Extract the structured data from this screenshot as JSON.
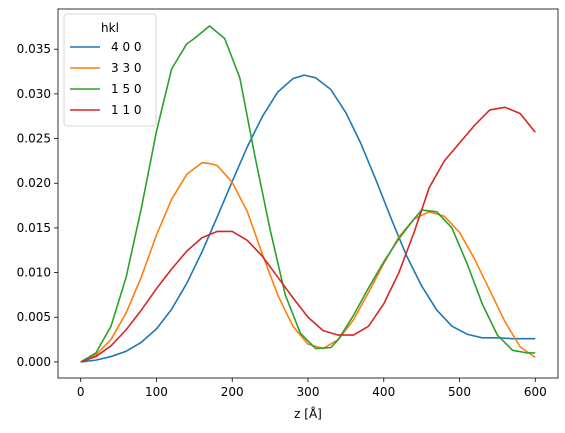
{
  "chart_data": {
    "type": "line",
    "xlabel": "z [Å]",
    "ylabel": "",
    "xlim": [
      -30,
      630
    ],
    "ylim": [
      -0.0018,
      0.0395
    ],
    "xticks": [
      0,
      100,
      200,
      300,
      400,
      500,
      600
    ],
    "yticks": [
      0.0,
      0.005,
      0.01,
      0.015,
      0.02,
      0.025,
      0.03,
      0.035
    ],
    "ytick_labels": [
      "0.000",
      "0.005",
      "0.010",
      "0.015",
      "0.020",
      "0.025",
      "0.030",
      "0.035"
    ],
    "xtick_labels": [
      "0",
      "100",
      "200",
      "300",
      "400",
      "500",
      "600"
    ],
    "legend": {
      "title": "hkl",
      "placement": "top-left"
    },
    "grid": false,
    "series": [
      {
        "name": "4 0 0",
        "color": "#1f77b4",
        "x": [
          0,
          20,
          40,
          60,
          80,
          100,
          120,
          140,
          160,
          180,
          200,
          220,
          240,
          260,
          280,
          295,
          310,
          330,
          350,
          370,
          390,
          410,
          430,
          450,
          470,
          490,
          510,
          530,
          550,
          570,
          600
        ],
        "y": [
          0.0,
          0.0002,
          0.0006,
          0.0012,
          0.0022,
          0.0037,
          0.0059,
          0.0088,
          0.0123,
          0.0162,
          0.0202,
          0.0241,
          0.0275,
          0.0302,
          0.0317,
          0.0321,
          0.0318,
          0.0305,
          0.0279,
          0.0244,
          0.0203,
          0.016,
          0.0119,
          0.0085,
          0.0058,
          0.004,
          0.0031,
          0.0027,
          0.0027,
          0.0026,
          0.0026
        ]
      },
      {
        "name": "3 3 0",
        "color": "#ff7f0e",
        "x": [
          0,
          20,
          40,
          60,
          80,
          100,
          120,
          140,
          160,
          170,
          180,
          200,
          220,
          240,
          260,
          280,
          300,
          320,
          340,
          360,
          380,
          400,
          420,
          440,
          460,
          480,
          500,
          520,
          540,
          560,
          580,
          600
        ],
        "y": [
          0.0,
          0.0008,
          0.0025,
          0.0055,
          0.0095,
          0.0142,
          0.0182,
          0.021,
          0.0223,
          0.0222,
          0.022,
          0.0201,
          0.0168,
          0.012,
          0.0075,
          0.004,
          0.002,
          0.0015,
          0.0025,
          0.0047,
          0.0078,
          0.011,
          0.014,
          0.016,
          0.0168,
          0.0163,
          0.0145,
          0.0115,
          0.008,
          0.0045,
          0.0017,
          0.0005
        ]
      },
      {
        "name": "1 5 0",
        "color": "#2ca02c",
        "x": [
          0,
          20,
          40,
          60,
          80,
          100,
          120,
          140,
          150,
          170,
          190,
          210,
          230,
          250,
          270,
          290,
          310,
          330,
          340,
          360,
          380,
          400,
          420,
          440,
          450,
          470,
          490,
          510,
          530,
          550,
          570,
          590,
          600
        ],
        "y": [
          0.0,
          0.001,
          0.004,
          0.0095,
          0.0172,
          0.0258,
          0.0328,
          0.0356,
          0.0362,
          0.0376,
          0.0362,
          0.0318,
          0.023,
          0.0148,
          0.0075,
          0.0032,
          0.0015,
          0.0016,
          0.0025,
          0.0052,
          0.0083,
          0.0112,
          0.0138,
          0.016,
          0.017,
          0.0168,
          0.015,
          0.011,
          0.0065,
          0.003,
          0.0013,
          0.001,
          0.001
        ]
      },
      {
        "name": "1 1 0",
        "color": "#d62728",
        "x": [
          0,
          20,
          40,
          60,
          80,
          100,
          120,
          140,
          160,
          180,
          200,
          220,
          240,
          260,
          280,
          300,
          320,
          340,
          360,
          380,
          400,
          420,
          440,
          460,
          480,
          500,
          520,
          540,
          560,
          580,
          600
        ],
        "y": [
          0.0,
          0.0006,
          0.0018,
          0.0036,
          0.0058,
          0.0082,
          0.0104,
          0.0124,
          0.0139,
          0.0146,
          0.0146,
          0.0136,
          0.0118,
          0.0095,
          0.0072,
          0.005,
          0.0035,
          0.003,
          0.003,
          0.004,
          0.0065,
          0.01,
          0.0145,
          0.0195,
          0.0225,
          0.0245,
          0.0265,
          0.0282,
          0.0285,
          0.0278,
          0.0257
        ]
      }
    ]
  }
}
